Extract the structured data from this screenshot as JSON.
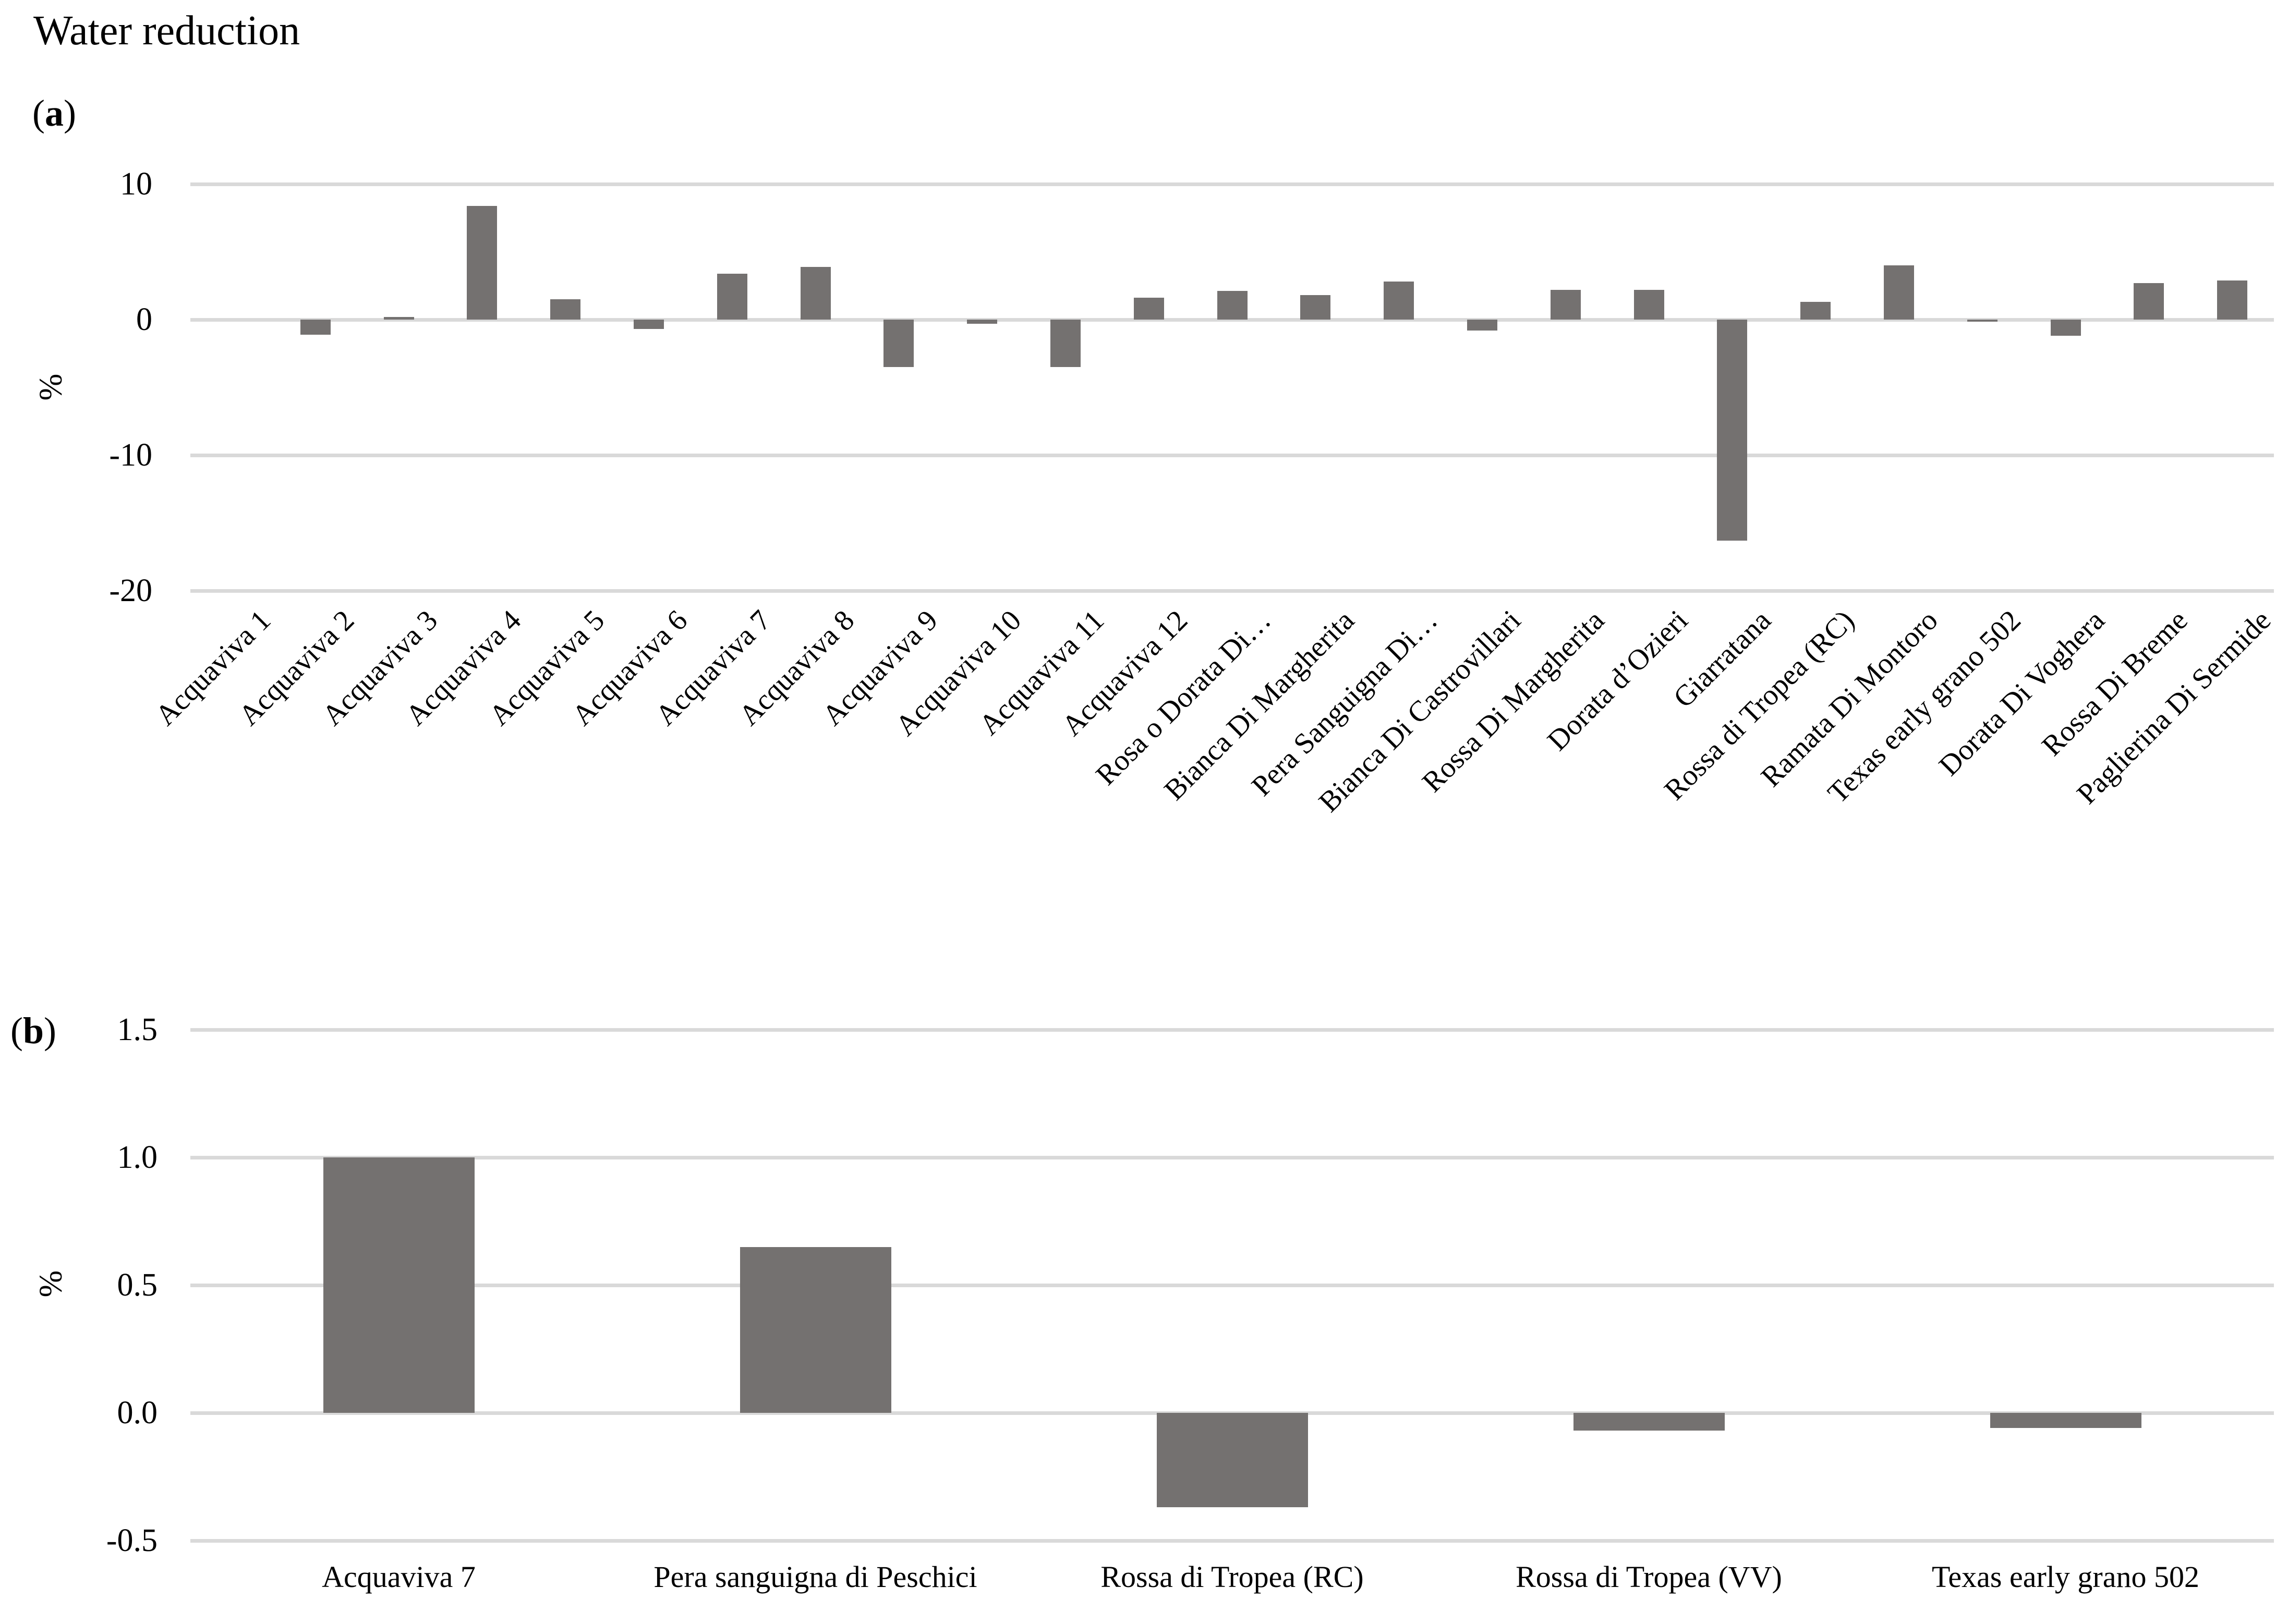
{
  "figure": {
    "title": "Water reduction"
  },
  "panels": {
    "a": {
      "open": "(",
      "letter": "a",
      "close": ")"
    },
    "b": {
      "open": "(",
      "letter": "b",
      "close": ")"
    }
  },
  "chart_data": [
    {
      "panel": "a",
      "type": "bar",
      "title": "Water reduction",
      "ylabel": "%",
      "xlabel": "",
      "bar_color": "#747170",
      "gridline_color": "#D9D9D9",
      "ylim": [
        -20,
        10
      ],
      "ytick_values": [
        10,
        0,
        -10,
        -20
      ],
      "ytick_labels": [
        "10",
        "0",
        "-10",
        "-20"
      ],
      "legend": "none",
      "grid": "horizontal",
      "categories": [
        "Acquaviva 1",
        "Acquaviva 2",
        "Acquaviva 3",
        "Acquaviva 4",
        "Acquaviva 5",
        "Acquaviva 6",
        "Acquaviva 7",
        "Acquaviva 8",
        "Acquaviva 9",
        "Acquaviva 10",
        "Acquaviva 11",
        "Acquaviva 12",
        "Rosa o Dorata Di…",
        "Bianca Di Margherita",
        "Pera Sanguigna Di…",
        "Bianca Di Castrovillari",
        "Rossa Di Margherita",
        "Dorata d’Ozieri",
        "Giarratana",
        "Rossa di Tropea (RC)",
        "Ramata Di Montoro",
        "Texas early grano 502",
        "Dorata Di Voghera",
        "Rossa Di Breme",
        "Paglierina Di Sermide"
      ],
      "values": [
        0,
        -1.1,
        0.2,
        8.4,
        1.5,
        -0.7,
        3.4,
        3.9,
        -3.5,
        -0.3,
        -3.5,
        1.6,
        2.1,
        1.8,
        2.8,
        -0.8,
        2.2,
        2.2,
        -16.3,
        1.3,
        4.0,
        -0.15,
        -1.2,
        2.7,
        2.9
      ]
    },
    {
      "panel": "b",
      "type": "bar",
      "title": "",
      "ylabel": "%",
      "xlabel": "",
      "bar_color": "#747170",
      "gridline_color": "#D9D9D9",
      "ylim": [
        -0.5,
        1.5
      ],
      "ytick_values": [
        1.5,
        1.0,
        0.5,
        0.0,
        -0.5
      ],
      "ytick_labels": [
        "1.5",
        "1.0",
        "0.5",
        "0.0",
        "-0.5"
      ],
      "legend": "none",
      "grid": "horizontal",
      "categories": [
        "Acquaviva 7",
        "Pera sanguigna di Peschici",
        "Rossa di Tropea (RC)",
        "Rossa di Tropea (VV)",
        "Texas early grano 502"
      ],
      "values": [
        1.0,
        0.65,
        -0.37,
        -0.07,
        -0.06
      ]
    }
  ]
}
